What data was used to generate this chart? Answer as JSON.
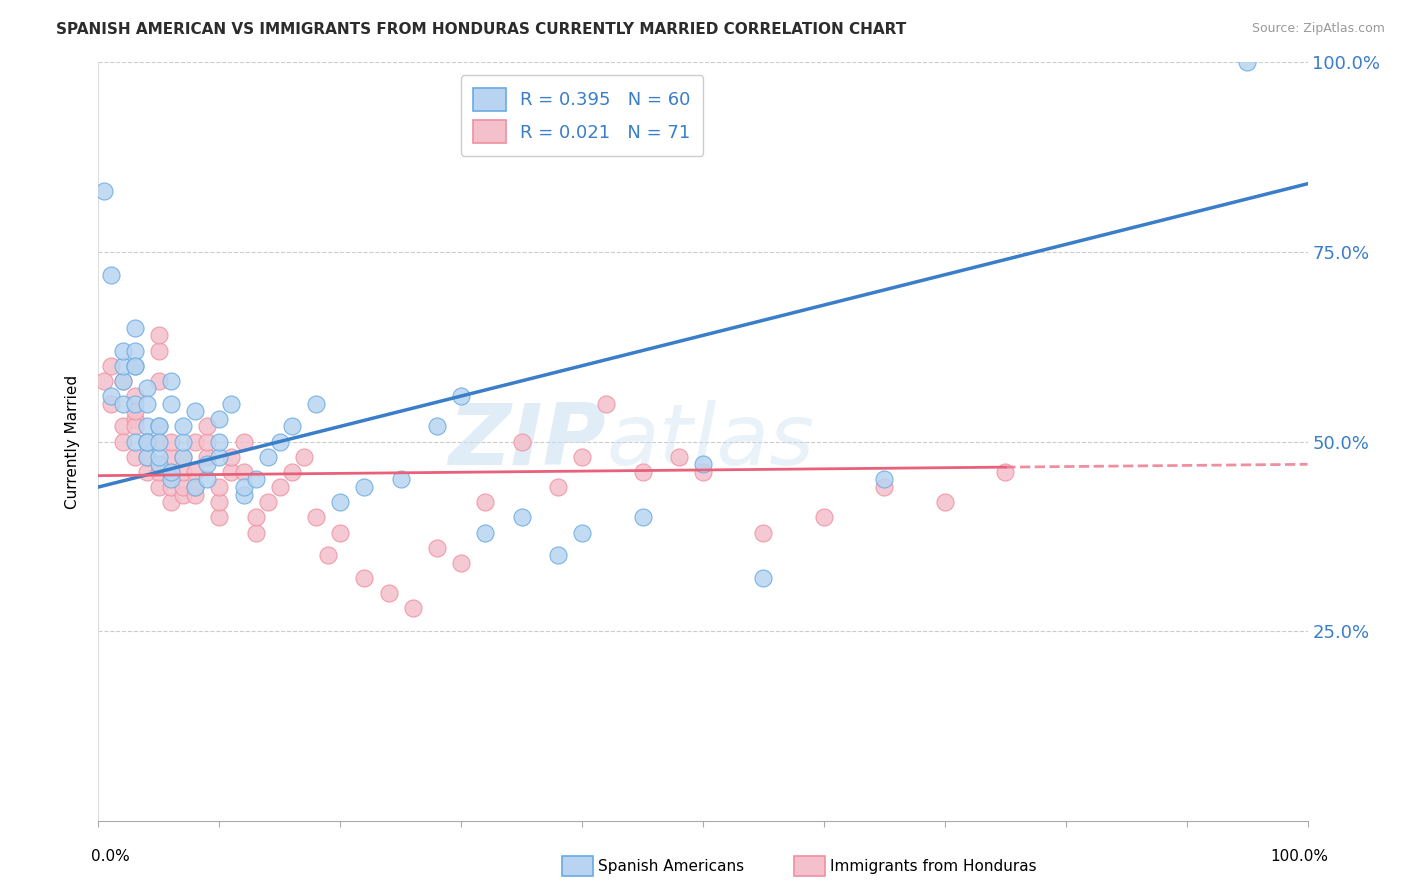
{
  "title": "SPANISH AMERICAN VS IMMIGRANTS FROM HONDURAS CURRENTLY MARRIED CORRELATION CHART",
  "source": "Source: ZipAtlas.com",
  "ylabel": "Currently Married",
  "xlim": [
    0.0,
    1.0
  ],
  "ylim": [
    0.0,
    1.0
  ],
  "ytick_labels": [
    "25.0%",
    "50.0%",
    "75.0%",
    "100.0%"
  ],
  "ytick_positions": [
    0.25,
    0.5,
    0.75,
    1.0
  ],
  "series1": {
    "label": "Spanish Americans",
    "R": 0.395,
    "N": 60,
    "line_color": "#3A7DC9",
    "scatter_face": "#B8D4F0",
    "scatter_edge": "#6AAAE0",
    "line_start_y": 0.44,
    "line_end_y": 0.84,
    "x": [
      0.005,
      0.01,
      0.01,
      0.02,
      0.02,
      0.02,
      0.02,
      0.03,
      0.03,
      0.03,
      0.03,
      0.03,
      0.03,
      0.04,
      0.04,
      0.04,
      0.04,
      0.04,
      0.04,
      0.05,
      0.05,
      0.05,
      0.05,
      0.05,
      0.06,
      0.06,
      0.06,
      0.06,
      0.07,
      0.07,
      0.07,
      0.08,
      0.08,
      0.09,
      0.09,
      0.1,
      0.1,
      0.1,
      0.11,
      0.12,
      0.12,
      0.13,
      0.14,
      0.15,
      0.16,
      0.18,
      0.2,
      0.22,
      0.25,
      0.28,
      0.3,
      0.32,
      0.35,
      0.38,
      0.4,
      0.45,
      0.5,
      0.55,
      0.65,
      0.95
    ],
    "y": [
      0.83,
      0.72,
      0.56,
      0.58,
      0.6,
      0.62,
      0.55,
      0.6,
      0.65,
      0.62,
      0.6,
      0.55,
      0.5,
      0.57,
      0.55,
      0.52,
      0.48,
      0.5,
      0.5,
      0.52,
      0.47,
      0.48,
      0.52,
      0.5,
      0.55,
      0.58,
      0.45,
      0.46,
      0.48,
      0.5,
      0.52,
      0.54,
      0.44,
      0.45,
      0.47,
      0.48,
      0.5,
      0.53,
      0.55,
      0.43,
      0.44,
      0.45,
      0.48,
      0.5,
      0.52,
      0.55,
      0.42,
      0.44,
      0.45,
      0.52,
      0.56,
      0.38,
      0.4,
      0.35,
      0.38,
      0.4,
      0.47,
      0.32,
      0.45,
      1.0
    ]
  },
  "series2": {
    "label": "Immigrants from Honduras",
    "R": 0.021,
    "N": 71,
    "line_color": "#E8607A",
    "scatter_face": "#F4C0CC",
    "scatter_edge": "#F090A0",
    "line_start_y": 0.455,
    "line_end_y": 0.47,
    "x": [
      0.005,
      0.01,
      0.01,
      0.02,
      0.02,
      0.02,
      0.03,
      0.03,
      0.03,
      0.03,
      0.03,
      0.04,
      0.04,
      0.04,
      0.04,
      0.05,
      0.05,
      0.05,
      0.05,
      0.05,
      0.05,
      0.06,
      0.06,
      0.06,
      0.06,
      0.06,
      0.07,
      0.07,
      0.07,
      0.07,
      0.08,
      0.08,
      0.08,
      0.08,
      0.09,
      0.09,
      0.09,
      0.1,
      0.1,
      0.1,
      0.11,
      0.11,
      0.12,
      0.12,
      0.13,
      0.13,
      0.14,
      0.15,
      0.16,
      0.17,
      0.18,
      0.19,
      0.2,
      0.22,
      0.24,
      0.26,
      0.28,
      0.3,
      0.32,
      0.35,
      0.38,
      0.4,
      0.42,
      0.45,
      0.48,
      0.5,
      0.55,
      0.6,
      0.65,
      0.7,
      0.75
    ],
    "y": [
      0.58,
      0.6,
      0.55,
      0.58,
      0.52,
      0.5,
      0.53,
      0.56,
      0.48,
      0.52,
      0.54,
      0.5,
      0.46,
      0.48,
      0.5,
      0.62,
      0.44,
      0.46,
      0.5,
      0.58,
      0.64,
      0.42,
      0.44,
      0.46,
      0.48,
      0.5,
      0.43,
      0.44,
      0.46,
      0.48,
      0.5,
      0.43,
      0.44,
      0.46,
      0.48,
      0.5,
      0.52,
      0.4,
      0.42,
      0.44,
      0.46,
      0.48,
      0.5,
      0.46,
      0.38,
      0.4,
      0.42,
      0.44,
      0.46,
      0.48,
      0.4,
      0.35,
      0.38,
      0.32,
      0.3,
      0.28,
      0.36,
      0.34,
      0.42,
      0.5,
      0.44,
      0.48,
      0.55,
      0.46,
      0.48,
      0.46,
      0.38,
      0.4,
      0.44,
      0.42,
      0.46
    ]
  },
  "watermark_zip": "ZIP",
  "watermark_atlas": "atlas",
  "legend_R1": "R = 0.395",
  "legend_N1": "N = 60",
  "legend_R2": "R = 0.021",
  "legend_N2": "N = 71",
  "axis_label_color": "#3A7DC9",
  "background_color": "#FFFFFF",
  "grid_color": "#CCCCCC",
  "grid_linestyle": "--"
}
